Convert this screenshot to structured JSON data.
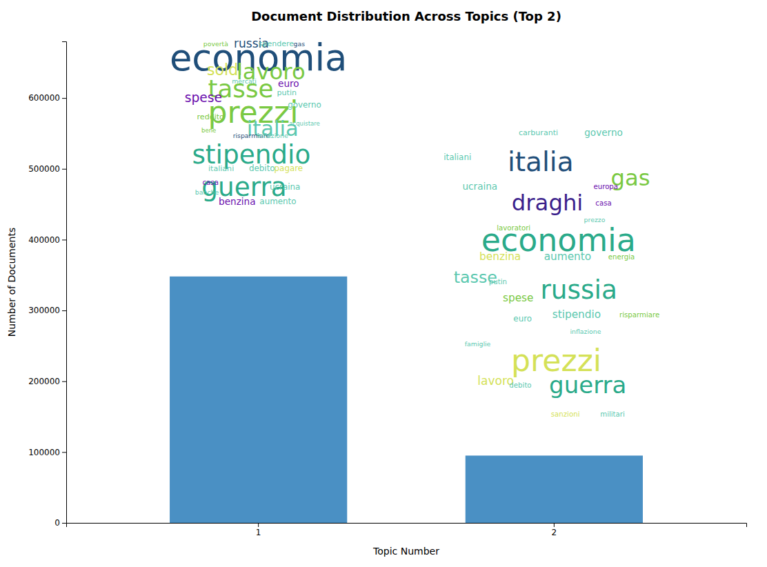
{
  "chart_data": {
    "type": "bar",
    "title": "Document Distribution Across Topics (Top 2)",
    "x_label": "Topic Number",
    "y_label": "Number of Documents",
    "categories": [
      "1",
      "2"
    ],
    "values": [
      348000,
      95000
    ],
    "color": "#4A90C4",
    "ylim": [
      0,
      680000
    ],
    "yticks": [
      0,
      100000,
      200000,
      300000,
      400000,
      500000,
      600000
    ],
    "grid": false,
    "annotations": [
      {
        "words": [
          {
            "text": "economia",
            "color": "#1f4e79"
          },
          {
            "text": "russia",
            "color": "#1f4e79"
          },
          {
            "text": "povertà",
            "color": "#7ac943"
          },
          {
            "text": "spendere",
            "color": "#5bc8af"
          },
          {
            "text": "gas",
            "color": "#1f4e79"
          },
          {
            "text": "soldi",
            "color": "#d4e157"
          },
          {
            "text": "lavoro",
            "color": "#7ac943"
          },
          {
            "text": "mercati",
            "color": "#5bc8af"
          },
          {
            "text": "tasse",
            "color": "#7ac943"
          },
          {
            "text": "euro",
            "color": "#6a0dad"
          },
          {
            "text": "putin",
            "color": "#5bc8af"
          },
          {
            "text": "governo",
            "color": "#5bc8af"
          },
          {
            "text": "spese",
            "color": "#6a0dad"
          },
          {
            "text": "prezzi",
            "color": "#7ac943"
          },
          {
            "text": "reddito",
            "color": "#7ac943"
          },
          {
            "text": "acquistare",
            "color": "#5bc8af"
          },
          {
            "text": "italia",
            "color": "#5bc8af"
          },
          {
            "text": "bene",
            "color": "#7ac943"
          },
          {
            "text": "risparmiare",
            "color": "#1f4e79"
          },
          {
            "text": "inflazione",
            "color": "#5bc8af"
          },
          {
            "text": "stipendio",
            "color": "#2aaa8a"
          },
          {
            "text": "italiani",
            "color": "#5bc8af"
          },
          {
            "text": "debito",
            "color": "#5bc8af"
          },
          {
            "text": "pagare",
            "color": "#d4e157"
          },
          {
            "text": "guerra",
            "color": "#2aaa8a"
          },
          {
            "text": "casa",
            "color": "#6a0dad"
          },
          {
            "text": "banche",
            "color": "#5bc8af"
          },
          {
            "text": "ucraina",
            "color": "#5bc8af"
          },
          {
            "text": "benzina",
            "color": "#6a0dad"
          },
          {
            "text": "aumento",
            "color": "#5bc8af"
          }
        ]
      },
      {
        "words": [
          {
            "text": "italiani",
            "color": "#5bc8af"
          },
          {
            "text": "ucraina",
            "color": "#5bc8af"
          },
          {
            "text": "carburanti",
            "color": "#5bc8af"
          },
          {
            "text": "governo",
            "color": "#5bc8af"
          },
          {
            "text": "italia",
            "color": "#1f4e79"
          },
          {
            "text": "gas",
            "color": "#7ac943"
          },
          {
            "text": "draghi",
            "color": "#3b1f8c"
          },
          {
            "text": "europa",
            "color": "#6a0dad"
          },
          {
            "text": "casa",
            "color": "#6a0dad"
          },
          {
            "text": "prezzo",
            "color": "#5bc8af"
          },
          {
            "text": "lavoratori",
            "color": "#7ac943"
          },
          {
            "text": "economia",
            "color": "#2aaa8a"
          },
          {
            "text": "benzina",
            "color": "#d4e157"
          },
          {
            "text": "aumento",
            "color": "#5bc8af"
          },
          {
            "text": "energia",
            "color": "#7ac943"
          },
          {
            "text": "tasse",
            "color": "#5bc8af"
          },
          {
            "text": "putin",
            "color": "#5bc8af"
          },
          {
            "text": "russia",
            "color": "#2aaa8a"
          },
          {
            "text": "spese",
            "color": "#7ac943"
          },
          {
            "text": "stipendio",
            "color": "#5bc8af"
          },
          {
            "text": "euro",
            "color": "#5bc8af"
          },
          {
            "text": "inflazione",
            "color": "#5bc8af"
          },
          {
            "text": "risparmiare",
            "color": "#7ac943"
          },
          {
            "text": "prezzi",
            "color": "#d4e157"
          },
          {
            "text": "famiglie",
            "color": "#5bc8af"
          },
          {
            "text": "lavoro",
            "color": "#d4e157"
          },
          {
            "text": "guerra",
            "color": "#2aaa8a"
          },
          {
            "text": "debito",
            "color": "#5bc8af"
          },
          {
            "text": "sanzioni",
            "color": "#d4e157"
          },
          {
            "text": "militari",
            "color": "#5bc8af"
          }
        ]
      }
    ]
  }
}
